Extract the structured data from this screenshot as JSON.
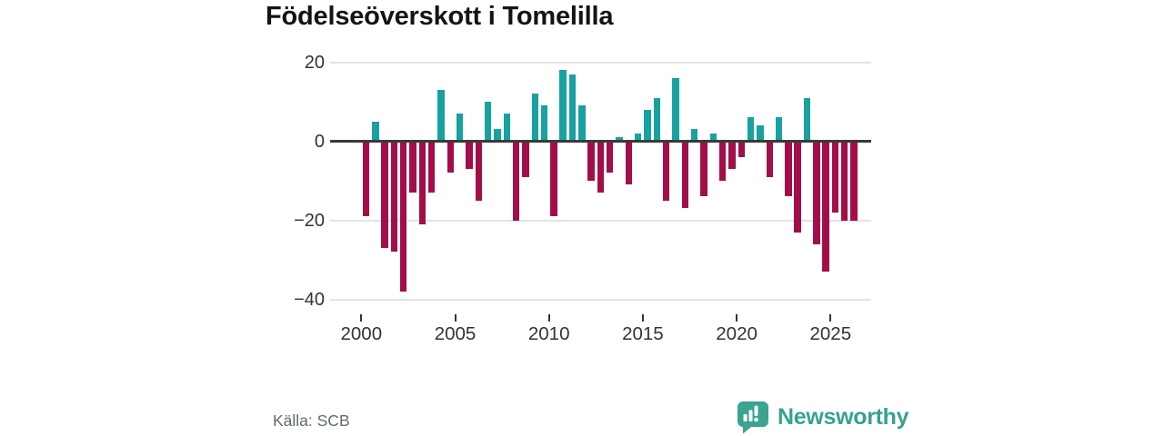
{
  "title": "Födelseöverskott i Tomelilla",
  "source": "Källa: SCB",
  "logo": {
    "text": "Newsworthy",
    "icon": "newsworthy-bubble-chart-icon",
    "color": "#37a28f"
  },
  "colors": {
    "positive": "#17a2a0",
    "negative": "#a30e49",
    "gridline": "#e3e3e3",
    "zero_line": "#3a3a3a",
    "axis_text": "#333333",
    "title_text": "#141414",
    "source_text": "#606a70"
  },
  "y_axis": {
    "tick_labels": [
      "20",
      "0",
      "−20",
      "−40"
    ],
    "tick_values": [
      20,
      0,
      -20,
      -40
    ]
  },
  "x_axis": {
    "tick_labels": [
      "2000",
      "2005",
      "2010",
      "2015",
      "2020",
      "2025"
    ],
    "tick_values": [
      2000,
      2005,
      2010,
      2015,
      2020,
      2025
    ]
  },
  "chart_data": {
    "type": "bar",
    "title": "Födelseöverskott i Tomelilla",
    "xlabel": "",
    "ylabel": "",
    "ylim": [
      -43,
      23
    ],
    "grid": true,
    "legend": "none",
    "categories": [
      "2000 H1",
      "2000 H2",
      "2001 H1",
      "2001 H2",
      "2002 H1",
      "2002 H2",
      "2003 H1",
      "2003 H2",
      "2004 H1",
      "2004 H2",
      "2005 H1",
      "2005 H2",
      "2006 H1",
      "2006 H2",
      "2007 H1",
      "2007 H2",
      "2008 H1",
      "2008 H2",
      "2009 H1",
      "2009 H2",
      "2010 H1",
      "2010 H2",
      "2011 H1",
      "2011 H2",
      "2012 H1",
      "2012 H2",
      "2013 H1",
      "2013 H2",
      "2014 H1",
      "2014 H2",
      "2015 H1",
      "2015 H2",
      "2016 H1",
      "2016 H2",
      "2017 H1",
      "2017 H2",
      "2018 H1",
      "2018 H2",
      "2019 H1",
      "2019 H2",
      "2020 H1",
      "2020 H2",
      "2021 H1",
      "2021 H2",
      "2022 H1",
      "2022 H2",
      "2023 H1",
      "2023 H2",
      "2024 H1",
      "2024 H2",
      "2025 H1",
      "2025 H2",
      "2026 H1"
    ],
    "values": [
      -19,
      5,
      -27,
      -28,
      -38,
      -13,
      -21,
      -13,
      13,
      -8,
      7,
      -7,
      -15,
      10,
      3,
      7,
      -20,
      -9,
      12,
      9,
      -19,
      18,
      17,
      9,
      -10,
      -13,
      -8,
      1,
      -11,
      2,
      8,
      11,
      -15,
      16,
      -17,
      3,
      -14,
      2,
      -10,
      -7,
      -4,
      6,
      4,
      -9,
      6,
      -14,
      -23,
      11,
      -26,
      -33,
      -18,
      -20,
      -20
    ]
  }
}
